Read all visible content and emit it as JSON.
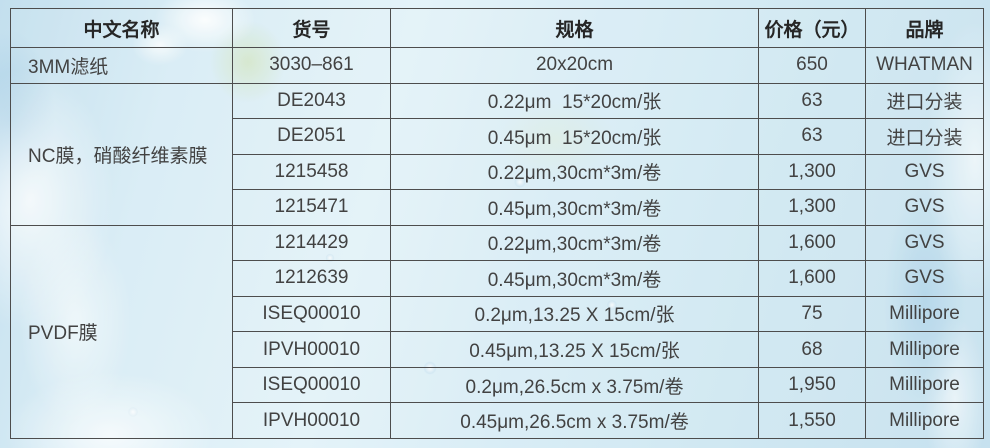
{
  "table": {
    "columns": [
      "中文名称",
      "货号",
      "规格",
      "价格（元）",
      "品牌"
    ],
    "row_groups": [
      {
        "name": "3MM滤纸",
        "span": 1
      },
      {
        "name": "NC膜，硝酸纤维素膜",
        "span": 4
      },
      {
        "name": "PVDF膜",
        "span": 6
      }
    ],
    "rows": [
      {
        "catalog": "3030–861",
        "spec": "20x20cm",
        "price": "650",
        "brand": "WHATMAN"
      },
      {
        "catalog": "DE2043",
        "spec": "0.22μm  15*20cm/张",
        "price": "63",
        "brand": "进口分装"
      },
      {
        "catalog": "DE2051",
        "spec": "0.45μm  15*20cm/张",
        "price": "63",
        "brand": "进口分装"
      },
      {
        "catalog": "1215458",
        "spec": "0.22μm,30cm*3m/卷",
        "price": "1,300",
        "brand": "GVS"
      },
      {
        "catalog": "1215471",
        "spec": "0.45μm,30cm*3m/卷",
        "price": "1,300",
        "brand": "GVS"
      },
      {
        "catalog": "1214429",
        "spec": "0.22μm,30cm*3m/卷",
        "price": "1,600",
        "brand": "GVS"
      },
      {
        "catalog": "1212639",
        "spec": "0.45μm,30cm*3m/卷",
        "price": "1,600",
        "brand": "GVS"
      },
      {
        "catalog": "ISEQ00010",
        "spec": "0.2μm,13.25 X 15cm/张",
        "price": "75",
        "brand": "Millipore"
      },
      {
        "catalog": "IPVH00010",
        "spec": "0.45μm,13.25 X 15cm/张",
        "price": "68",
        "brand": "Millipore"
      },
      {
        "catalog": "ISEQ00010",
        "spec": "0.2μm,26.5cm x 3.75m/卷",
        "price": "1,950",
        "brand": "Millipore"
      },
      {
        "catalog": "IPVH00010",
        "spec": "0.45μm,26.5cm x 3.75m/卷",
        "price": "1,550",
        "brand": "Millipore"
      }
    ]
  },
  "colors": {
    "border": "#4d4d4d",
    "body_text": "#424242",
    "header_text": "#262626",
    "background_base": "#d3e9f3"
  }
}
